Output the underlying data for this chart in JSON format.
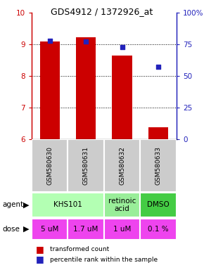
{
  "title": "GDS4912 / 1372926_at",
  "samples": [
    "GSM580630",
    "GSM580631",
    "GSM580632",
    "GSM580633"
  ],
  "bar_values": [
    9.1,
    9.22,
    8.65,
    6.38
  ],
  "percentile_values": [
    78,
    77,
    73,
    57
  ],
  "ylim_left": [
    6,
    10
  ],
  "ylim_right": [
    0,
    100
  ],
  "yticks_left": [
    6,
    7,
    8,
    9,
    10
  ],
  "yticks_right": [
    0,
    25,
    50,
    75,
    100
  ],
  "ytick_labels_right": [
    "0",
    "25",
    "50",
    "75",
    "100%"
  ],
  "bar_color": "#cc0000",
  "dot_color": "#2222bb",
  "bar_width": 0.55,
  "agent_defs": [
    [
      0,
      1,
      "KHS101",
      "#b3ffb3"
    ],
    [
      2,
      2,
      "retinoic\nacid",
      "#99ee99"
    ],
    [
      3,
      3,
      "DMSO",
      "#44cc44"
    ]
  ],
  "dose_labels": [
    "5 uM",
    "1.7 uM",
    "1 uM",
    "0.1 %"
  ],
  "dose_color": "#ee44ee",
  "left_axis_color": "#cc0000",
  "right_axis_color": "#2222bb",
  "sample_bg_color": "#cccccc",
  "background_color": "#ffffff",
  "title_fontsize": 9,
  "tick_fontsize": 7.5,
  "sample_fontsize": 6.5,
  "cell_fontsize": 7.5,
  "legend_fontsize": 6.5
}
